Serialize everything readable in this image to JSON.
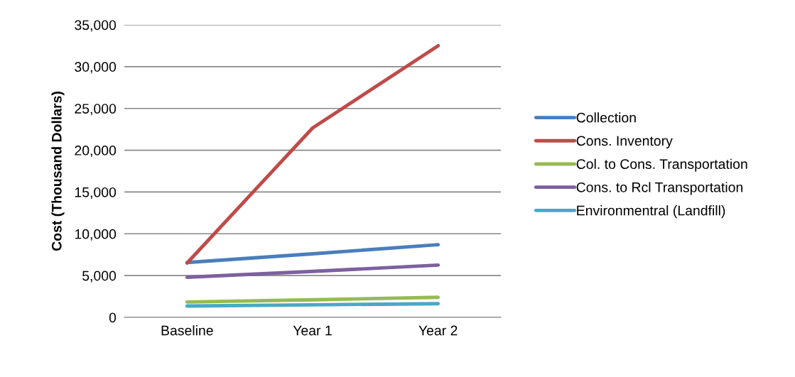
{
  "chart_data": {
    "type": "line",
    "ylabel": "Cost (Thousand Dollars)",
    "categories": [
      "Baseline",
      "Year 1",
      "Year 2"
    ],
    "series": [
      {
        "name": "Collection",
        "color": "#4a7ebb",
        "values": [
          6560,
          7600,
          8700
        ]
      },
      {
        "name": "Cons. Inventory",
        "color": "#be4b48",
        "values": [
          6500,
          22660,
          32500
        ]
      },
      {
        "name": "Col. to Cons. Transportation",
        "color": "#98b954",
        "values": [
          1840,
          2100,
          2400
        ]
      },
      {
        "name": "Cons. to Rcl Transportation",
        "color": "#7d60a0",
        "values": [
          4800,
          5500,
          6250
        ]
      },
      {
        "name": "Environmentral (Landfill)",
        "color": "#46aac5",
        "values": [
          1360,
          1500,
          1640
        ]
      }
    ],
    "ylim": [
      0,
      35000
    ],
    "yticks": [
      {
        "value": 0,
        "label": "0"
      },
      {
        "value": 5000,
        "label": "5,000"
      },
      {
        "value": 10000,
        "label": "10,000"
      },
      {
        "value": 15000,
        "label": "15,000"
      },
      {
        "value": 20000,
        "label": "20,000"
      },
      {
        "value": 25000,
        "label": "25,000"
      },
      {
        "value": 30000,
        "label": "30,000"
      },
      {
        "value": 35000,
        "label": "35,000"
      }
    ],
    "grid": "y",
    "legend": "right",
    "marker": "none",
    "line_style": "solid"
  }
}
